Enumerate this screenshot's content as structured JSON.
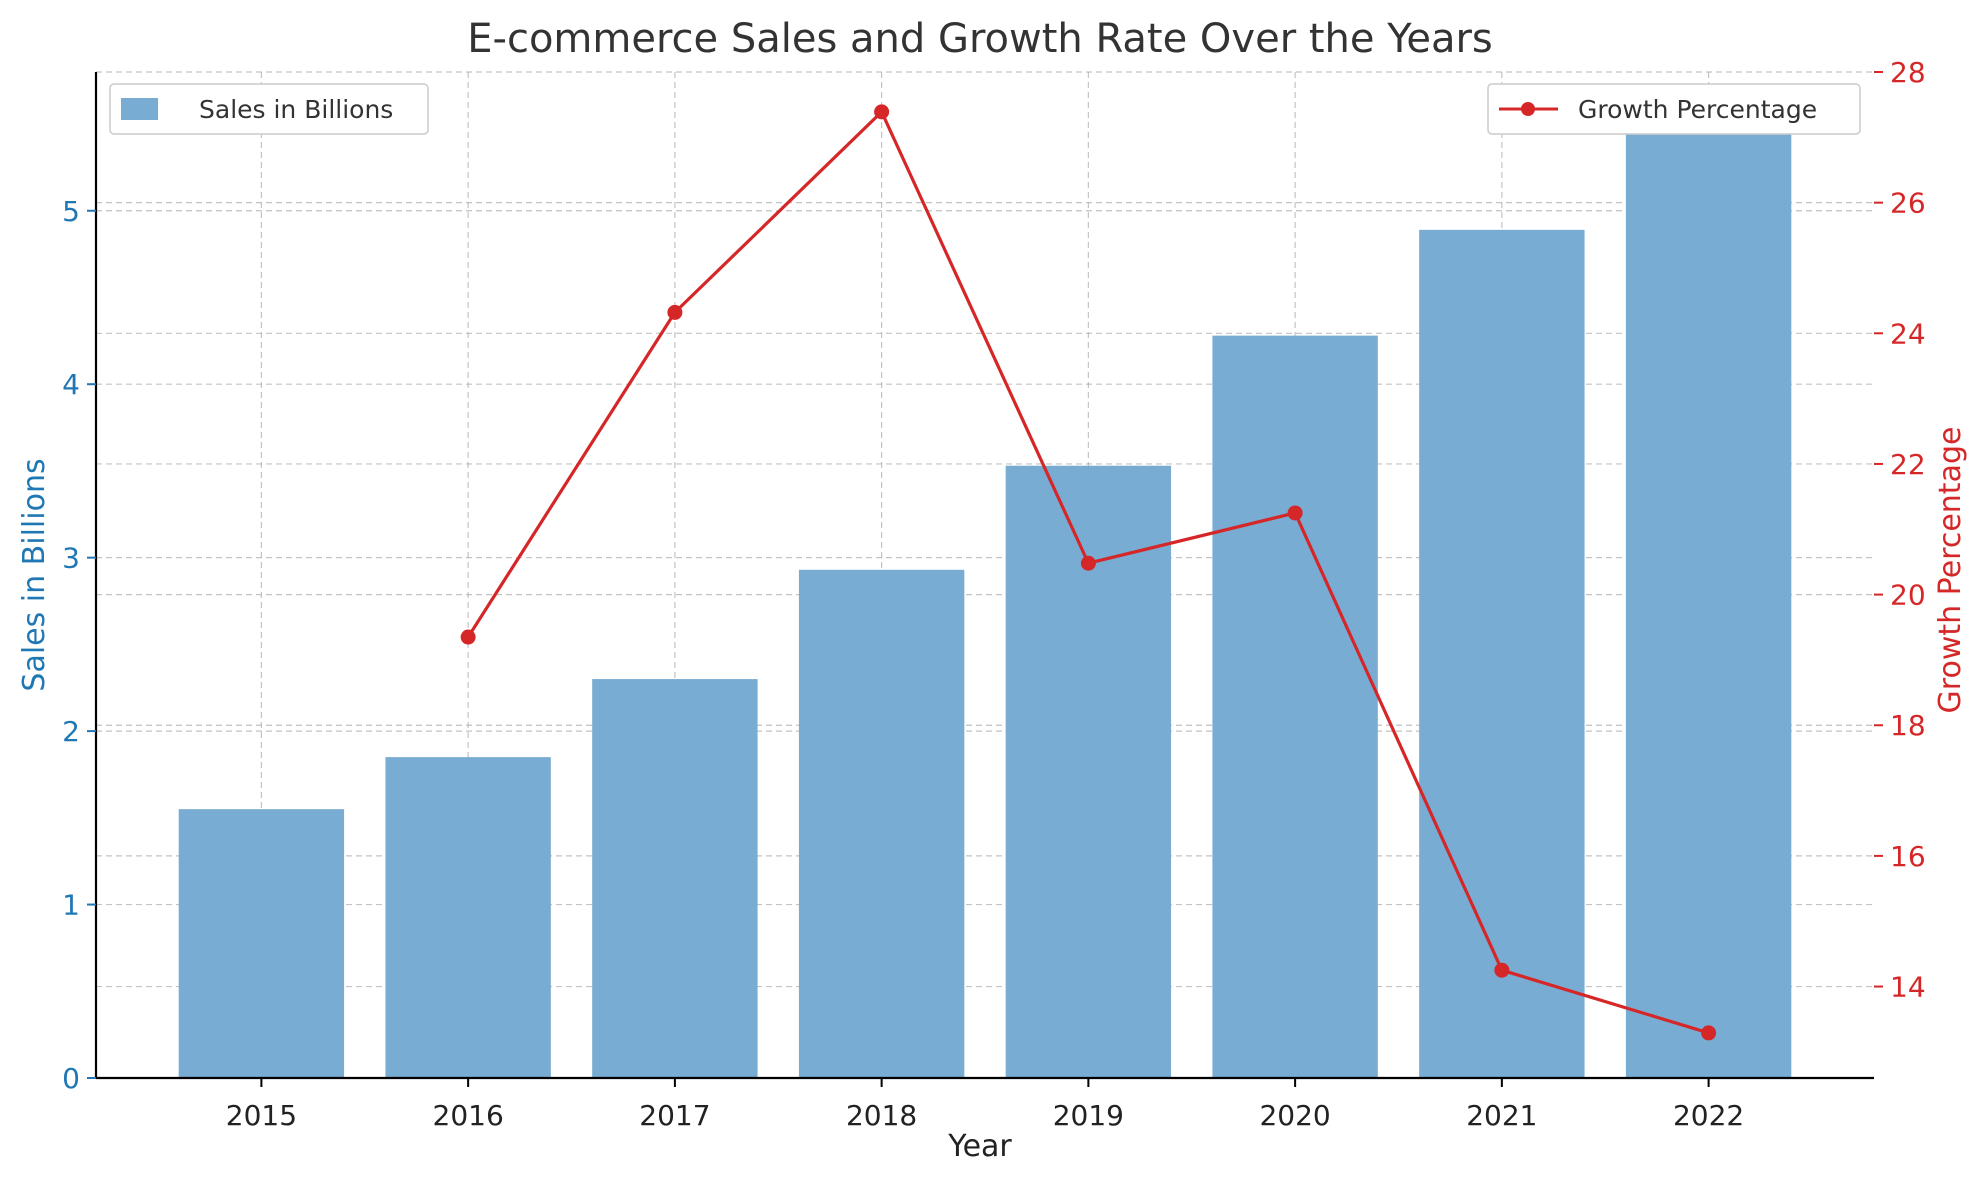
{
  "colors": {
    "bar": "#78acd2",
    "line": "#d62728",
    "left_axis": "#1f77b4",
    "right_axis": "#d62728",
    "text": "#222222"
  },
  "chart_data": {
    "type": "bar",
    "title": "E-commerce Sales and Growth Rate Over the Years",
    "xlabel": "Year",
    "ylabel": "Sales in Billions",
    "y2label": "Growth Percentage",
    "categories": [
      "2015",
      "2016",
      "2017",
      "2018",
      "2019",
      "2020",
      "2021",
      "2022"
    ],
    "ylim": [
      0,
      5.8
    ],
    "y_ticks": [
      0,
      1,
      2,
      3,
      4,
      5
    ],
    "y2lim": [
      12.6,
      28
    ],
    "y2_ticks": [
      14,
      16,
      18,
      20,
      22,
      24,
      26,
      28
    ],
    "grid": true,
    "series": [
      {
        "name": "Sales in Billions",
        "type": "bar",
        "axis": "left",
        "values": [
          1.55,
          1.85,
          2.3,
          2.93,
          3.53,
          4.28,
          4.89,
          5.54
        ],
        "legend_position": "top-left"
      },
      {
        "name": "Growth Percentage",
        "type": "line",
        "axis": "right",
        "values": [
          null,
          19.35,
          24.32,
          27.39,
          20.48,
          21.25,
          14.25,
          13.29
        ],
        "legend_position": "top-right"
      }
    ]
  }
}
